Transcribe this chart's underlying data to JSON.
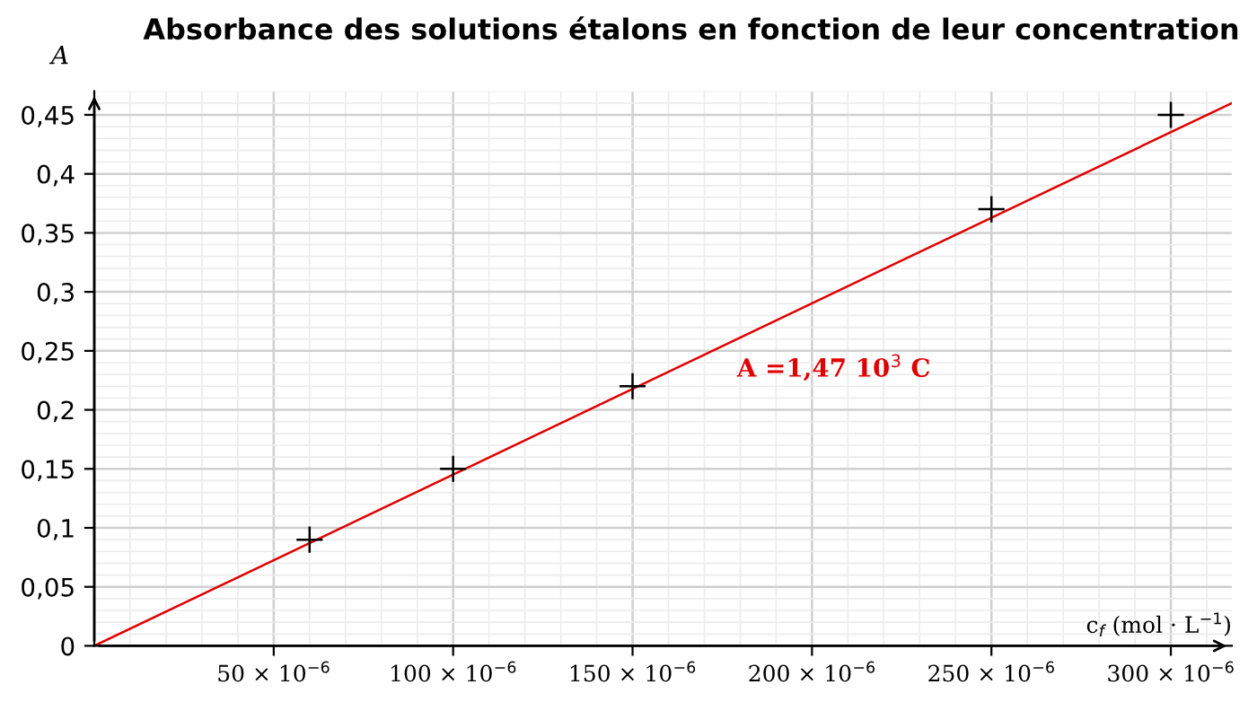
{
  "chart_data": {
    "type": "scatter",
    "title": "Absorbance des solutions étalons en fonction de leur concentration",
    "xlabel": "c$_{f}$ (mol · L$^{−1}$)",
    "ylabel": "A",
    "x": [
      6e-05,
      0.0001,
      0.00015,
      0.00025,
      0.0003
    ],
    "series": [
      {
        "values": [
          0.09,
          0.15,
          0.22,
          0.37,
          0.45
        ],
        "color": "#000000",
        "marker": "cross"
      },
      {
        "type": "line",
        "x": [
          0,
          0.000317
        ],
        "values": [
          0,
          0.46
        ],
        "color": "#e00000",
        "marker": "none",
        "line_style": "solid"
      }
    ],
    "annotations": [
      "A =1,47 10$^{3}$ C"
    ],
    "xlim": [
      0,
      0.000317
    ],
    "ylim": [
      0,
      0.47
    ],
    "xticks": [
      {
        "value": 5e-05,
        "label": "50 × 10$^{−6}$"
      },
      {
        "value": 0.0001,
        "label": "100 × 10$^{−6}$"
      },
      {
        "value": 0.00015,
        "label": "150 × 10$^{−6}$"
      },
      {
        "value": 0.0002,
        "label": "200 × 10$^{−6}$"
      },
      {
        "value": 0.00025,
        "label": "250 × 10$^{−6}$"
      },
      {
        "value": 0.0003,
        "label": "300 × 10$^{−6}$"
      }
    ],
    "yticks": [
      {
        "value": 0,
        "label": "0"
      },
      {
        "value": 0.05,
        "label": "0,05"
      },
      {
        "value": 0.1,
        "label": "0,1"
      },
      {
        "value": 0.15,
        "label": "0,15"
      },
      {
        "value": 0.2,
        "label": "0,2"
      },
      {
        "value": 0.25,
        "label": "0,25"
      },
      {
        "value": 0.3,
        "label": "0,3"
      },
      {
        "value": 0.35,
        "label": "0,35"
      },
      {
        "value": 0.4,
        "label": "0,4"
      },
      {
        "value": 0.45,
        "label": "0,45"
      }
    ],
    "grid": true,
    "legend": false
  }
}
